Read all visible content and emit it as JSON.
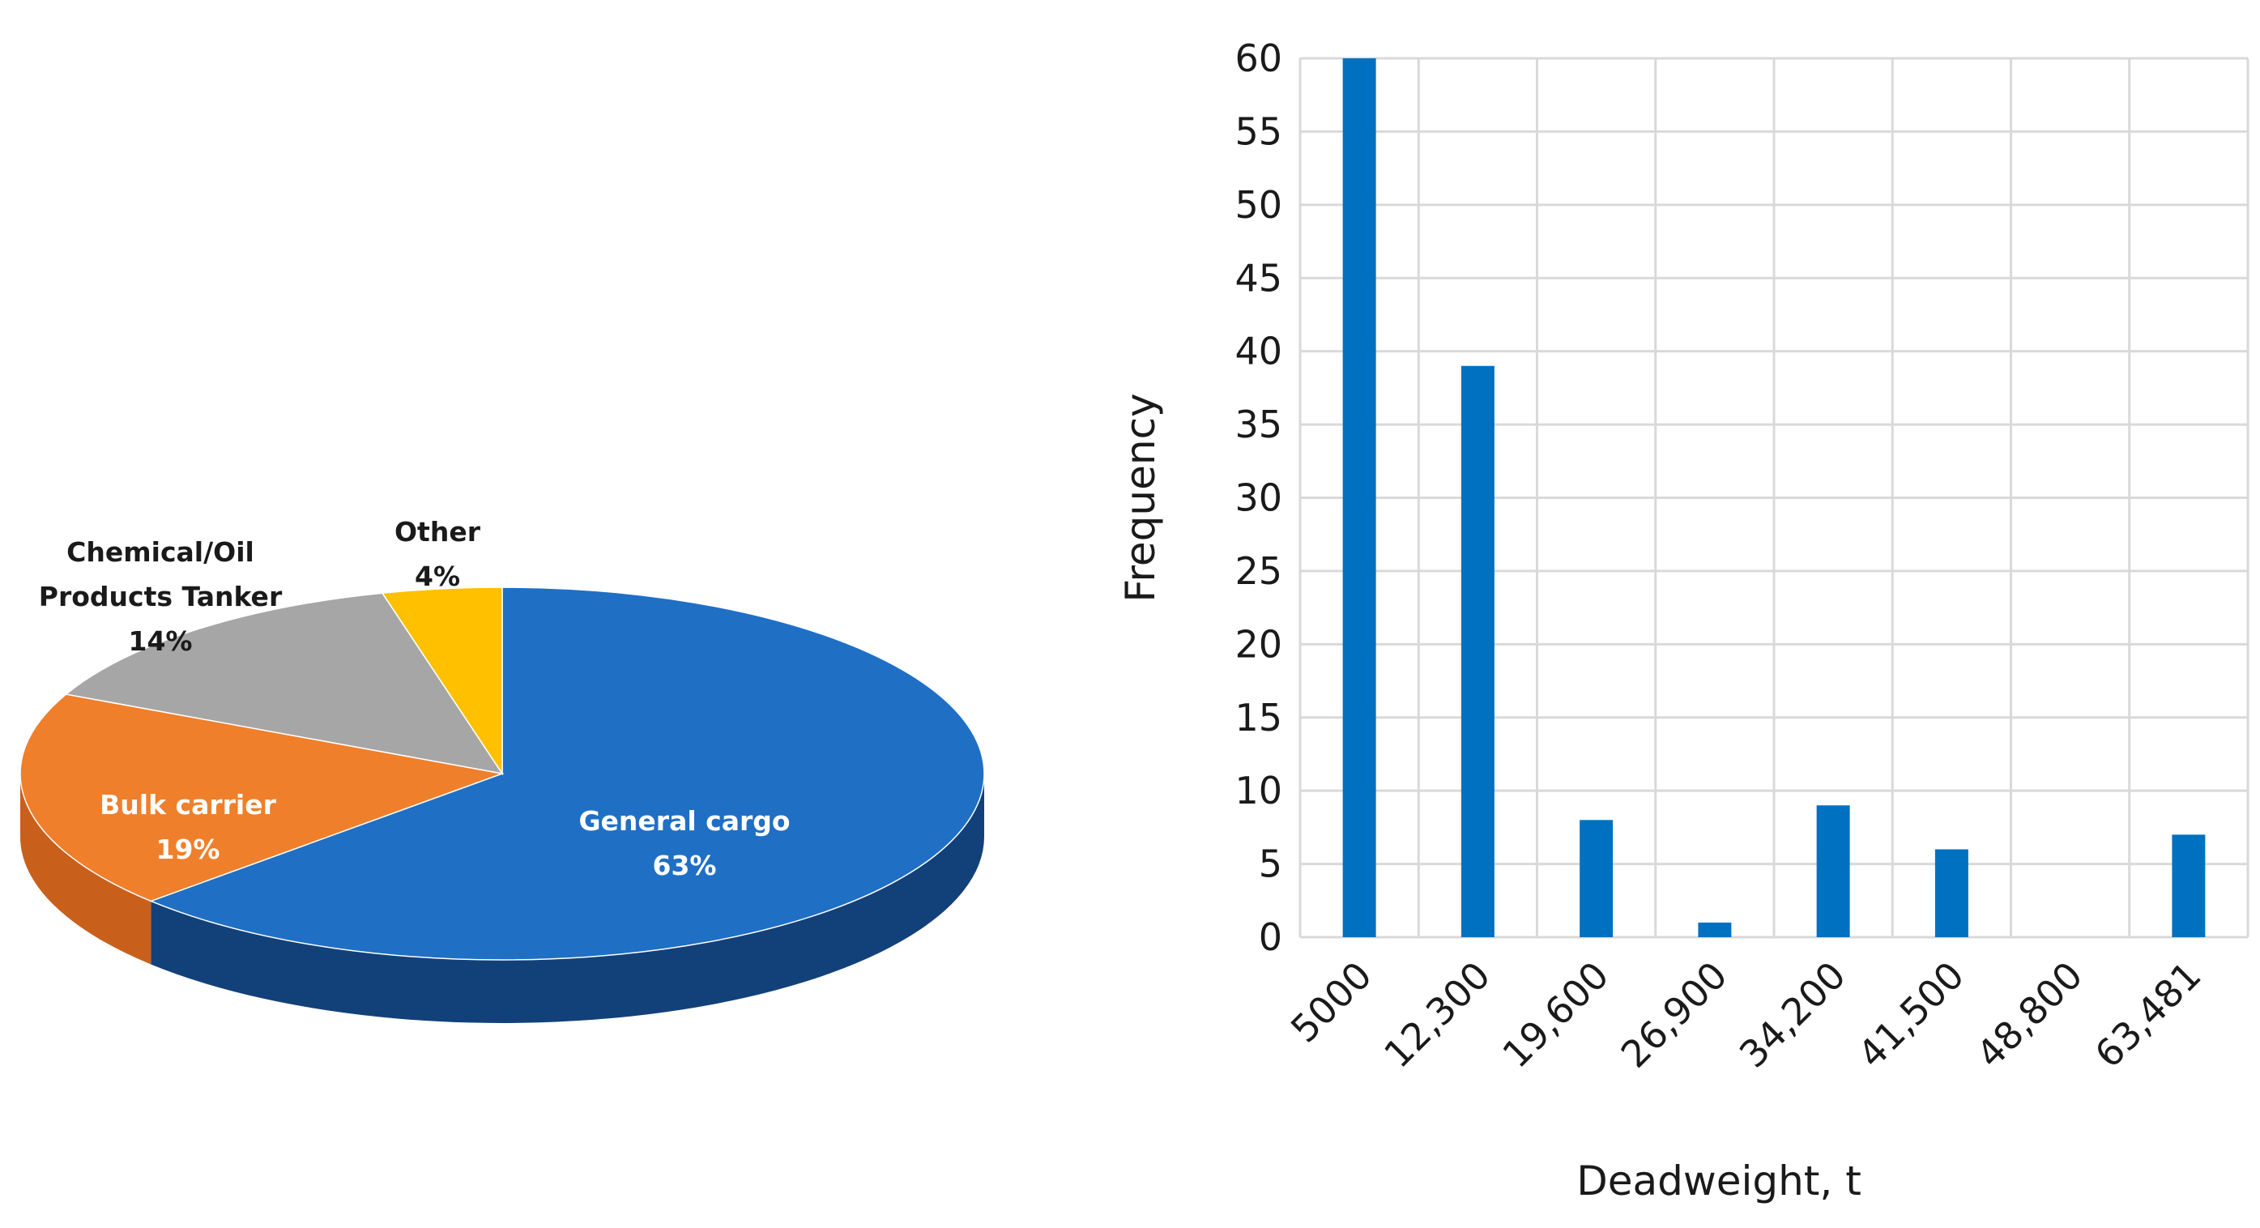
{
  "chart_data": [
    {
      "type": "pie",
      "style": "3d",
      "slices": [
        {
          "label": "General cargo",
          "percent_label": "63%",
          "value": 63,
          "color": "#1F6FC5",
          "side_color": "#12417A",
          "label_color": "#ffffff"
        },
        {
          "label": "Bulk carrier",
          "percent_label": "19%",
          "value": 19,
          "color": "#F07F2B",
          "side_color": "#C8601B",
          "label_color": "#ffffff"
        },
        {
          "label": "Chemical/Oil Products Tanker",
          "label_lines": [
            "Chemical/Oil",
            "Products Tanker"
          ],
          "percent_label": "14%",
          "value": 14,
          "color": "#A6A6A6",
          "side_color": "#7F7F7F",
          "label_color": "#1a1a1a"
        },
        {
          "label": "Other",
          "percent_label": "4%",
          "value": 4,
          "color": "#FFC000",
          "side_color": "#C79500",
          "label_color": "#1a1a1a"
        }
      ]
    },
    {
      "type": "bar",
      "categories": [
        "5000",
        "12,300",
        "19,600",
        "26,900",
        "34,200",
        "41,500",
        "48,800",
        "63,481"
      ],
      "values": [
        60,
        39,
        8,
        1,
        9,
        6,
        0,
        7
      ],
      "bar_color": "#0070C0",
      "xlabel": "Deadweight, t",
      "ylabel": "Frequency",
      "ylim": [
        0,
        60
      ],
      "yticks": [
        0,
        5,
        10,
        15,
        20,
        25,
        30,
        35,
        40,
        45,
        50,
        55,
        60
      ],
      "grid": true
    }
  ]
}
